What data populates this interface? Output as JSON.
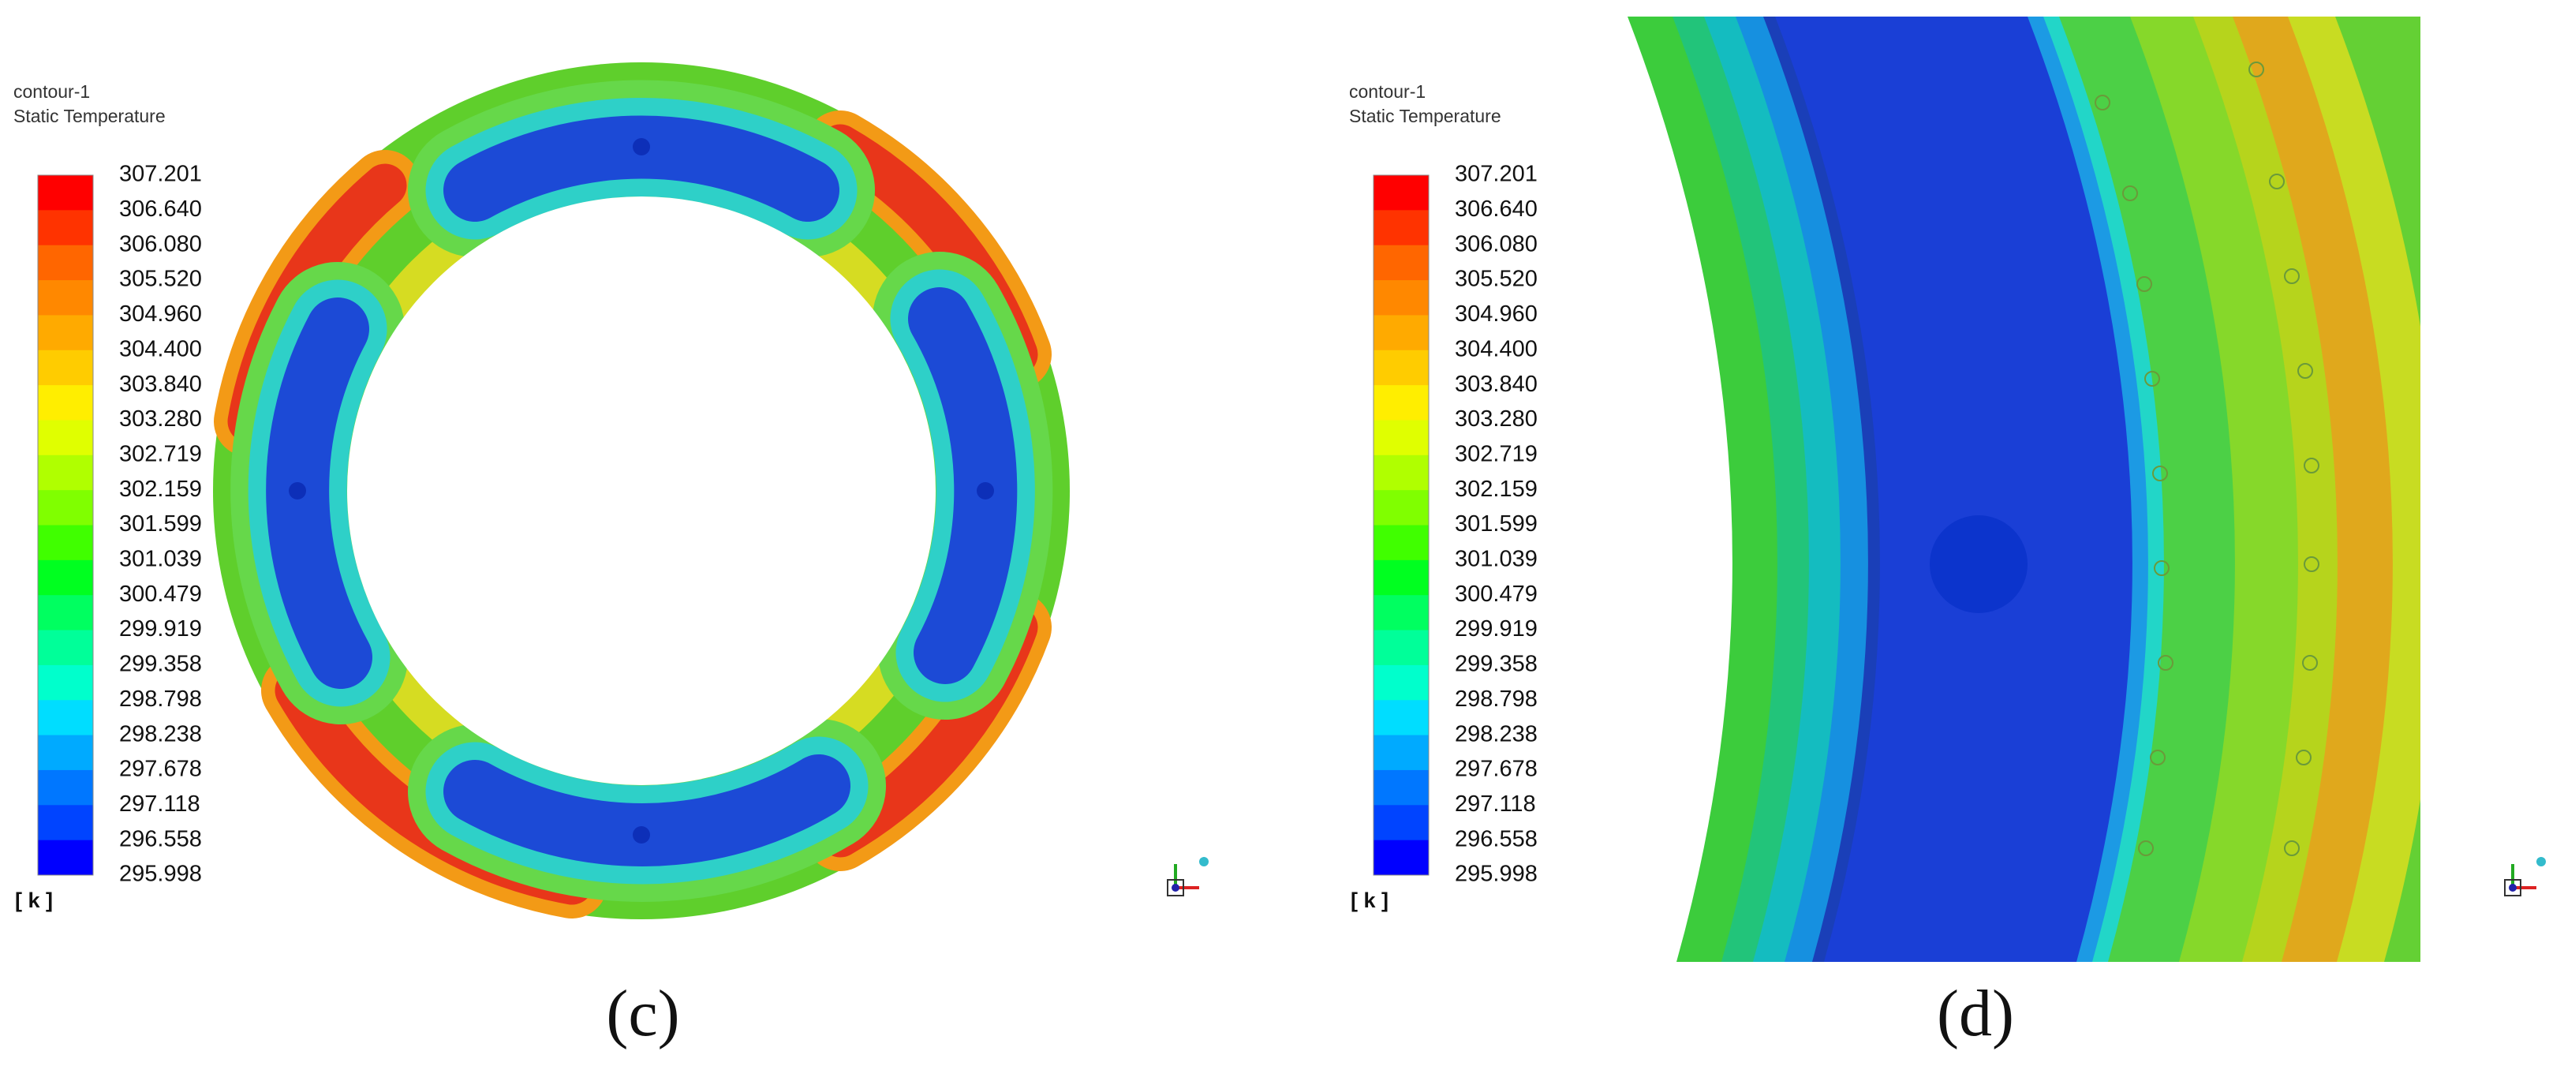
{
  "panels": [
    {
      "legend": {
        "name": "contour-1",
        "variable": "Static Temperature",
        "levels": [
          "307.201",
          "306.640",
          "306.080",
          "305.520",
          "304.960",
          "304.400",
          "303.840",
          "303.280",
          "302.719",
          "302.159",
          "301.599",
          "301.039",
          "300.479",
          "299.919",
          "299.358",
          "298.798",
          "298.238",
          "297.678",
          "297.118",
          "296.558",
          "295.998"
        ],
        "unit": "[ k ]"
      },
      "caption": "(c)"
    },
    {
      "legend": {
        "name": "contour-1",
        "variable": "Static Temperature",
        "levels": [
          "307.201",
          "306.640",
          "306.080",
          "305.520",
          "304.960",
          "304.400",
          "303.840",
          "303.280",
          "302.719",
          "302.159",
          "301.599",
          "301.039",
          "300.479",
          "299.919",
          "299.358",
          "298.798",
          "298.238",
          "297.678",
          "297.118",
          "296.558",
          "295.998"
        ],
        "unit": "[ k ]"
      },
      "caption": "(d)"
    }
  ]
}
